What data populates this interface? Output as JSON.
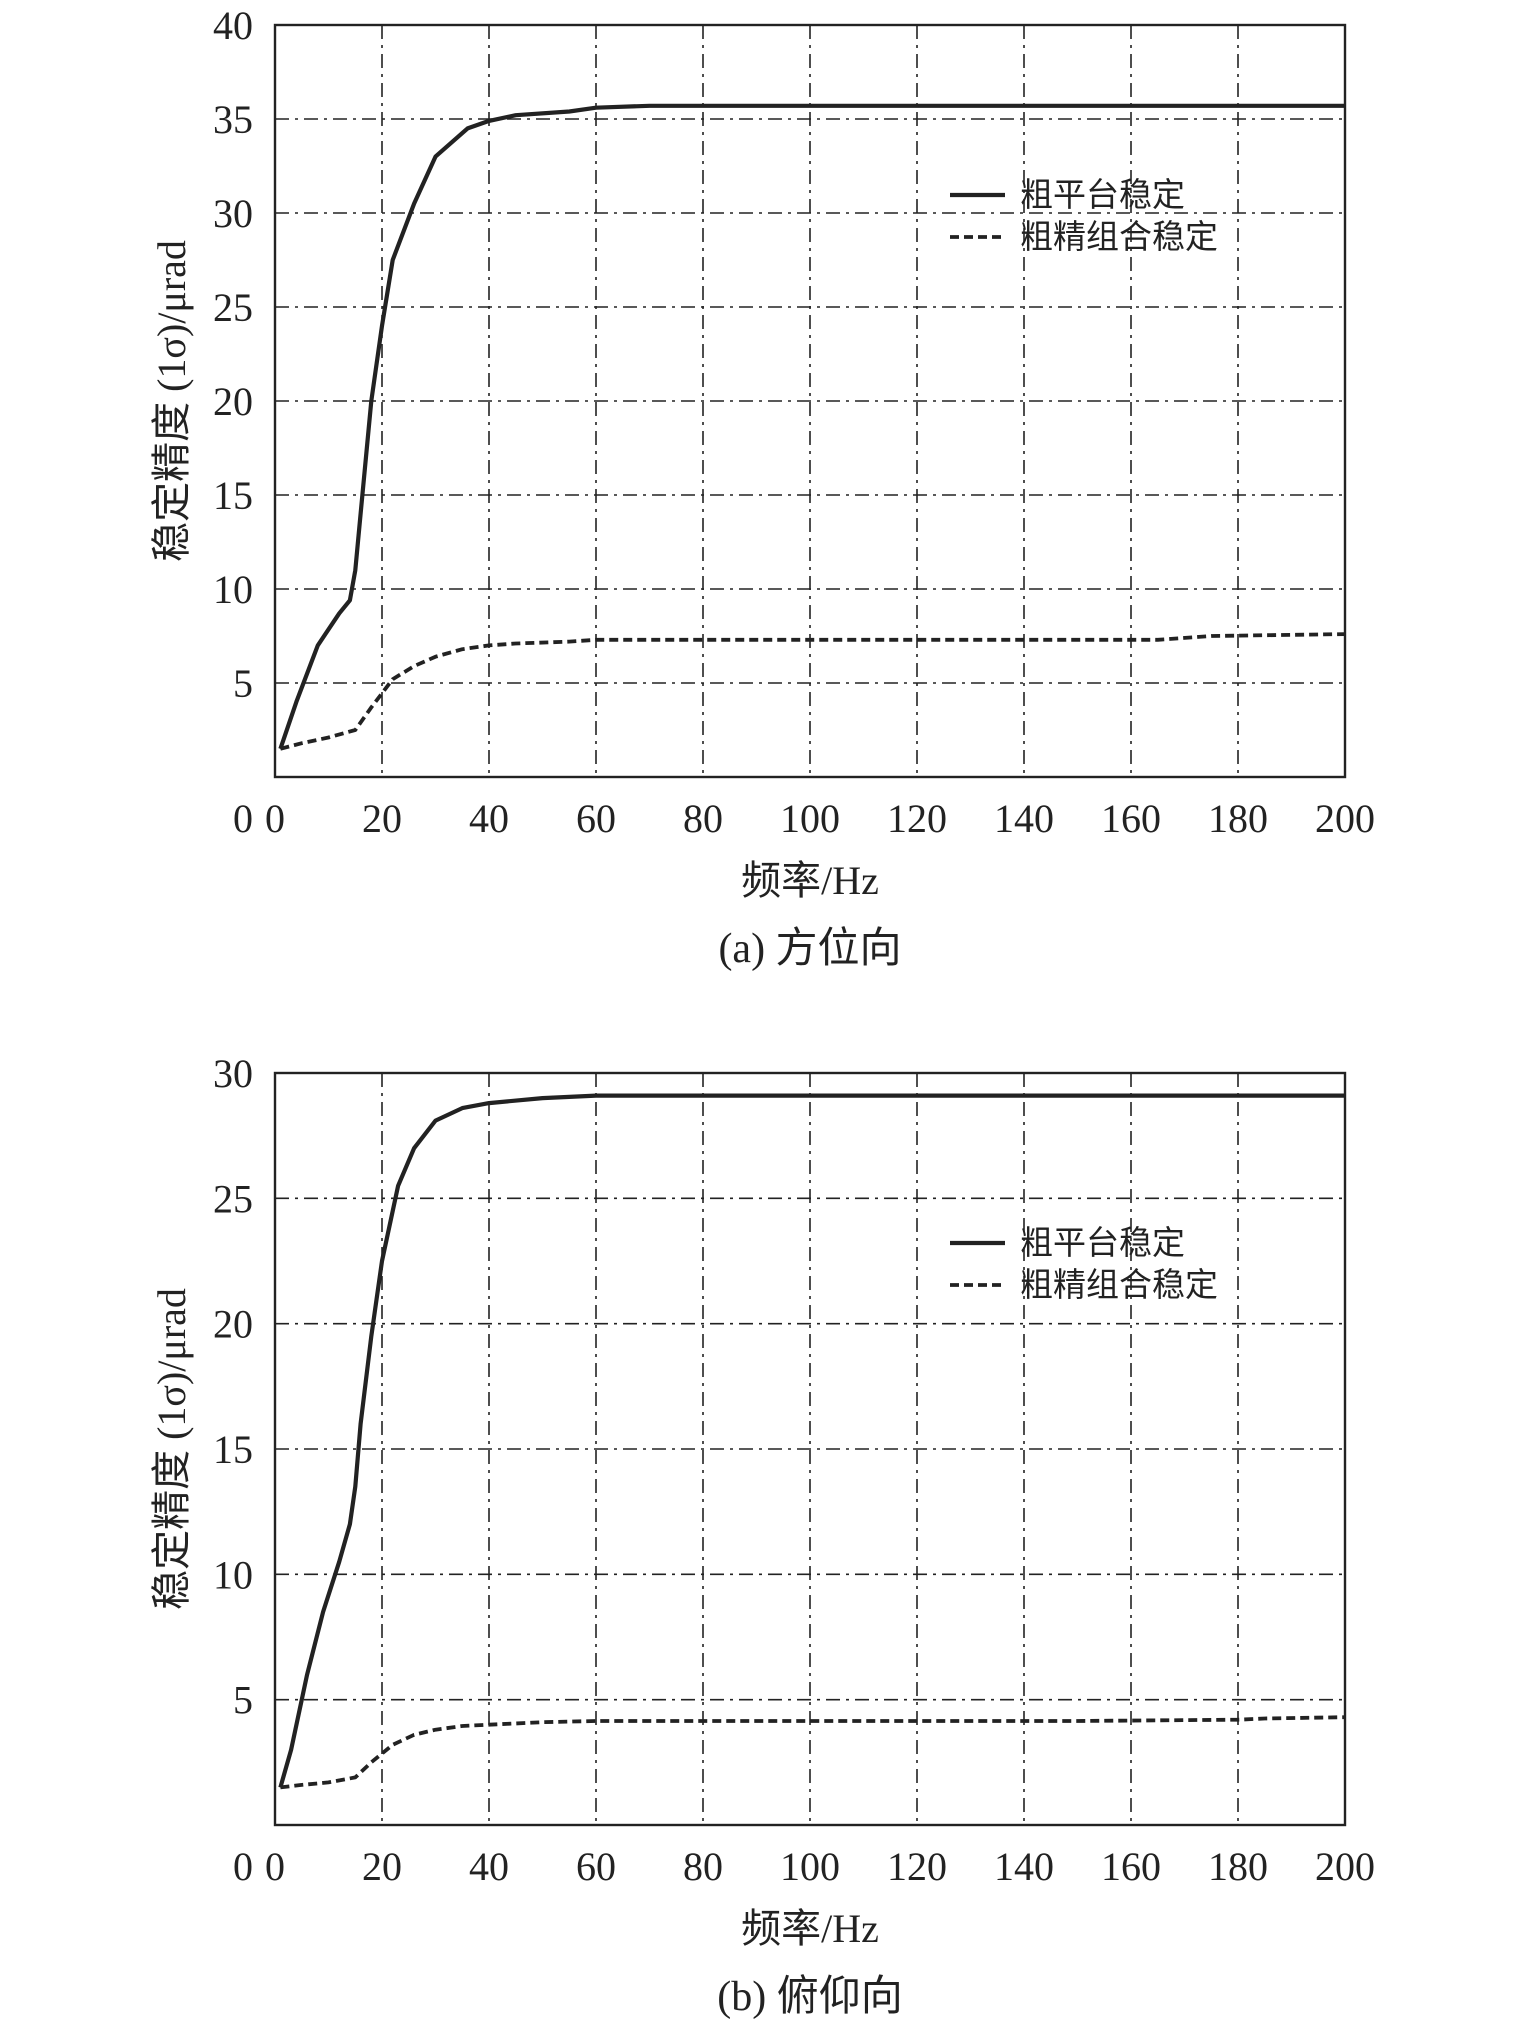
{
  "chart_data": [
    {
      "type": "line",
      "caption": "(a) 方位向",
      "xlabel": "频率/Hz",
      "ylabel": "稳定精度 (1σ)/μrad",
      "xlim": [
        0,
        200
      ],
      "ylim": [
        0,
        40
      ],
      "x_ticks": [
        0,
        20,
        40,
        60,
        80,
        100,
        120,
        140,
        160,
        180,
        200
      ],
      "y_ticks": [
        5,
        10,
        15,
        20,
        25,
        30,
        35,
        40
      ],
      "y_zero_label": "0",
      "grid": true,
      "legend_position": "top-right",
      "series": [
        {
          "name": "粗平台稳定",
          "style": "solid",
          "color": "#222222",
          "x": [
            1,
            4,
            8,
            12,
            14,
            15,
            16,
            18,
            20,
            22,
            26,
            30,
            36,
            40,
            45,
            55,
            60,
            70,
            100,
            150,
            200
          ],
          "y": [
            1.5,
            4,
            7,
            8.7,
            9.4,
            11,
            14,
            20,
            24,
            27.5,
            30.5,
            33,
            34.5,
            34.9,
            35.2,
            35.4,
            35.6,
            35.7,
            35.7,
            35.7,
            35.7
          ]
        },
        {
          "name": "粗精组合稳定",
          "style": "dashed",
          "color": "#222222",
          "x": [
            1,
            5,
            10,
            15,
            18,
            22,
            26,
            30,
            35,
            40,
            45,
            55,
            60,
            100,
            150,
            165,
            175,
            200
          ],
          "y": [
            1.5,
            1.8,
            2.1,
            2.5,
            3.7,
            5.2,
            5.9,
            6.4,
            6.8,
            7.0,
            7.1,
            7.2,
            7.3,
            7.3,
            7.3,
            7.3,
            7.5,
            7.6
          ]
        }
      ]
    },
    {
      "type": "line",
      "caption": "(b) 俯仰向",
      "xlabel": "频率/Hz",
      "ylabel": "稳定精度 (1σ)/μrad",
      "xlim": [
        0,
        200
      ],
      "ylim": [
        0,
        30
      ],
      "x_ticks": [
        0,
        20,
        40,
        60,
        80,
        100,
        120,
        140,
        160,
        180,
        200
      ],
      "y_ticks": [
        5,
        10,
        15,
        20,
        25,
        30
      ],
      "y_zero_label": "0",
      "grid": true,
      "legend_position": "top-right",
      "series": [
        {
          "name": "粗平台稳定",
          "style": "solid",
          "color": "#222222",
          "x": [
            1,
            3,
            6,
            9,
            12,
            14,
            15,
            16,
            18,
            20,
            23,
            26,
            30,
            35,
            40,
            50,
            60,
            100,
            150,
            200
          ],
          "y": [
            1.5,
            3,
            6,
            8.5,
            10.5,
            12,
            13.5,
            16,
            19.5,
            22.5,
            25.5,
            27,
            28.1,
            28.6,
            28.8,
            29.0,
            29.1,
            29.1,
            29.1,
            29.1
          ]
        },
        {
          "name": "粗精组合稳定",
          "style": "dashed",
          "color": "#222222",
          "x": [
            1,
            5,
            10,
            15,
            18,
            22,
            26,
            30,
            35,
            40,
            50,
            60,
            100,
            150,
            180,
            185,
            200
          ],
          "y": [
            1.5,
            1.6,
            1.7,
            1.9,
            2.5,
            3.2,
            3.6,
            3.8,
            3.95,
            4.0,
            4.1,
            4.15,
            4.15,
            4.15,
            4.2,
            4.25,
            4.3
          ]
        }
      ]
    }
  ]
}
